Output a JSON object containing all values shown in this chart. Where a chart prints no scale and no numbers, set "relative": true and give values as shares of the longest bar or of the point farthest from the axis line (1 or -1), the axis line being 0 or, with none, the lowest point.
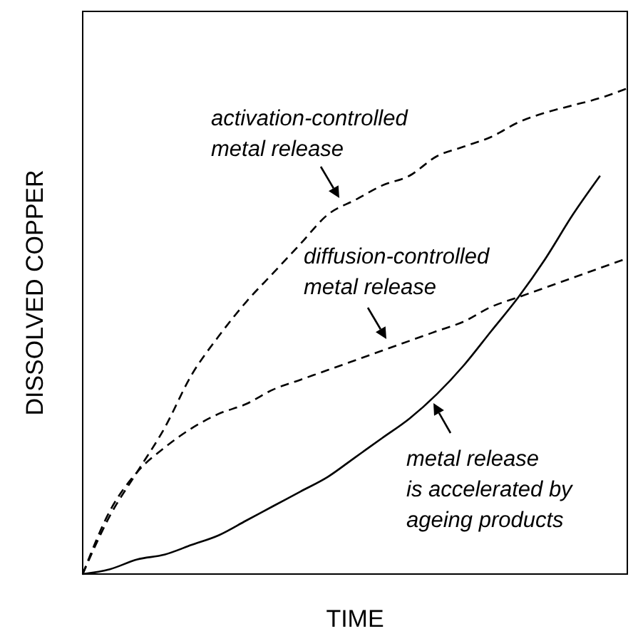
{
  "chart_data": {
    "type": "line",
    "relative": true,
    "xlabel": "TIME",
    "ylabel": "DISSOLVED COPPER",
    "marker": "none",
    "categories": [
      null,
      null,
      null,
      null,
      null,
      null,
      null,
      null,
      null,
      null,
      null,
      null,
      null,
      null,
      null,
      null,
      null,
      null,
      null,
      null,
      null
    ],
    "series": [
      {
        "color": "#000000",
        "line_style": "dashed",
        "values": [
          0,
          0.12,
          0.21,
          0.3,
          0.41,
          0.49,
          0.56,
          0.62,
          0.68,
          0.74,
          0.77,
          0.8,
          0.82,
          0.86,
          0.88,
          0.9,
          0.93,
          0.95,
          0.965,
          0.98,
          1
        ]
      },
      {
        "color": "#000000",
        "line_style": "dashed",
        "values": [
          0,
          0.13,
          0.21,
          0.26,
          0.3,
          0.33,
          0.35,
          0.38,
          0.4,
          0.42,
          0.44,
          0.46,
          0.48,
          0.5,
          0.52,
          0.55,
          0.57,
          0.59,
          0.61,
          0.63,
          0.65
        ]
      },
      {
        "color": "#000000",
        "line_style": "solid",
        "values": [
          0,
          0.01,
          0.03,
          0.04,
          0.06,
          0.08,
          0.11,
          0.14,
          0.17,
          0.2,
          0.24,
          0.28,
          0.32,
          0.37,
          0.43,
          0.5,
          0.57,
          0.65,
          0.74,
          0.82,
          null
        ]
      }
    ],
    "annotations": [
      "activation-controlled\nmetal release",
      "diffusion-controlled\nmetal release",
      "metal release\nis accelerated by\nageing products"
    ]
  }
}
